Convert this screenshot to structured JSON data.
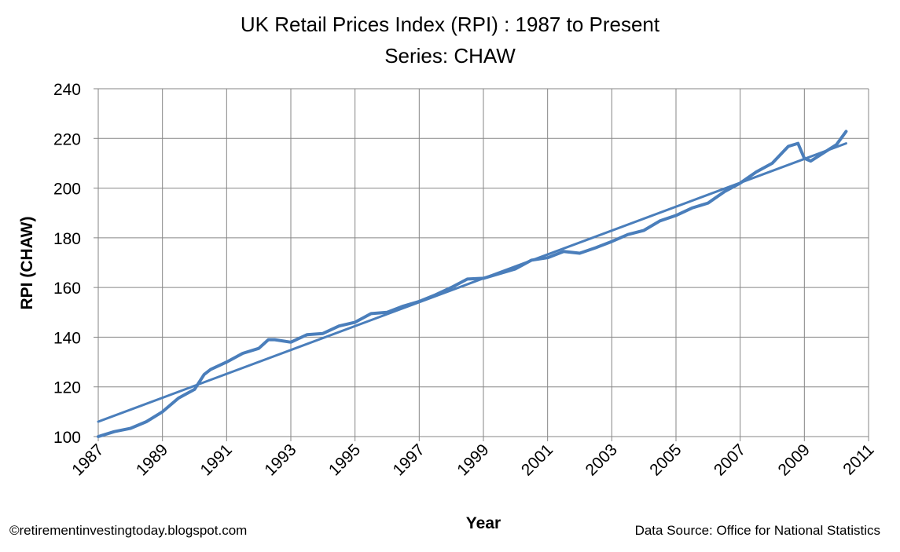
{
  "chart_data": {
    "type": "line",
    "title": "UK Retail Prices Index (RPI) : 1987 to Present",
    "subtitle": "Series: CHAW",
    "xlabel": "Year",
    "ylabel": "RPI (CHAW)",
    "xlim": [
      1987,
      2011
    ],
    "ylim": [
      100,
      240
    ],
    "x_ticks": [
      "1987",
      "1989",
      "1991",
      "1993",
      "1995",
      "1997",
      "1999",
      "2001",
      "2003",
      "2005",
      "2007",
      "2009",
      "2011"
    ],
    "y_ticks": [
      "100",
      "120",
      "140",
      "160",
      "180",
      "200",
      "220",
      "240"
    ],
    "grid": true,
    "legend": "none",
    "color": "#4a7ebb",
    "series": [
      {
        "x": [
          1987.0,
          1987.5,
          1988.0,
          1988.5,
          1989.0,
          1989.5,
          1990.0,
          1990.3,
          1990.5,
          1991.0,
          1991.5,
          1992.0,
          1992.3,
          1992.5,
          1993.0,
          1993.5,
          1994.0,
          1994.5,
          1995.0,
          1995.5,
          1996.0,
          1996.5,
          1997.0,
          1997.5,
          1998.0,
          1998.5,
          1999.0,
          1999.5,
          2000.0,
          2000.5,
          2001.0,
          2001.5,
          2002.0,
          2002.5,
          2003.0,
          2003.5,
          2004.0,
          2004.5,
          2005.0,
          2005.5,
          2006.0,
          2006.5,
          2007.0,
          2007.5,
          2008.0,
          2008.5,
          2008.8,
          2009.0,
          2009.2,
          2009.5,
          2010.0,
          2010.3
        ],
        "y": [
          100.0,
          102.0,
          103.3,
          106.0,
          110.0,
          115.5,
          119.0,
          125.0,
          127.0,
          130.0,
          133.5,
          135.5,
          139.0,
          139.0,
          138.0,
          141.0,
          141.5,
          144.5,
          146.0,
          149.5,
          150.0,
          152.5,
          154.4,
          157.0,
          160.0,
          163.4,
          163.7,
          165.6,
          167.5,
          171.0,
          172.0,
          174.5,
          173.8,
          176.0,
          178.5,
          181.3,
          183.0,
          186.8,
          189.0,
          192.0,
          194.0,
          198.5,
          202.0,
          206.5,
          210.0,
          216.8,
          218.0,
          212.0,
          210.9,
          213.4,
          217.5,
          222.8
        ]
      },
      {
        "x": [
          1987.0,
          2010.3
        ],
        "y": [
          106.0,
          218.0
        ]
      }
    ]
  },
  "footer": {
    "credit": "©retirementinvestingtoday.blogspot.com",
    "source": "Data Source: Office for National Statistics"
  }
}
